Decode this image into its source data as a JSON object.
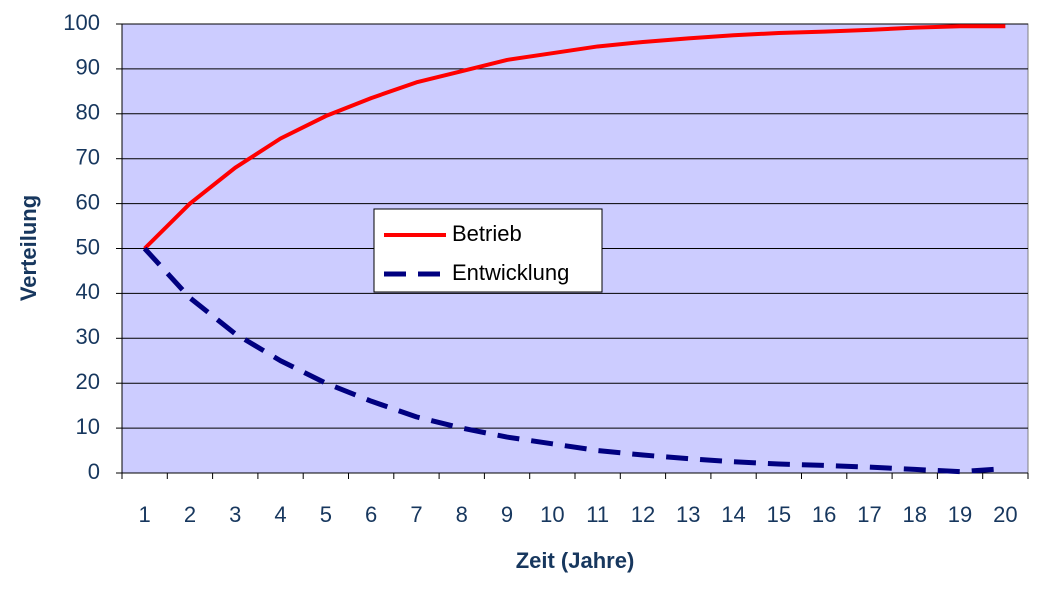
{
  "chart_data": {
    "type": "line",
    "x_label": "Zeit (Jahre)",
    "y_label": "Verteilung",
    "categories": [
      "1",
      "2",
      "3",
      "4",
      "5",
      "6",
      "7",
      "8",
      "9",
      "10",
      "11",
      "12",
      "13",
      "14",
      "15",
      "16",
      "17",
      "18",
      "19",
      "20"
    ],
    "series": [
      {
        "name": "Betrieb",
        "color": "#ff0000",
        "dash": false,
        "values": [
          50,
          60,
          68,
          74.5,
          79.5,
          83.5,
          87,
          89.5,
          92,
          93.5,
          95,
          96,
          96.8,
          97.5,
          98,
          98.3,
          98.7,
          99.2,
          99.5,
          99.5
        ]
      },
      {
        "name": "Entwicklung",
        "color": "#000080",
        "dash": true,
        "values": [
          50,
          39,
          31,
          25,
          20,
          16,
          12.5,
          10,
          8,
          6.5,
          5,
          4,
          3.2,
          2.5,
          2,
          1.7,
          1.3,
          0.8,
          0.3,
          1
        ]
      }
    ],
    "ylim": [
      0,
      100
    ],
    "yticks": [
      0,
      10,
      20,
      30,
      40,
      50,
      60,
      70,
      80,
      90,
      100
    ],
    "grid": true,
    "plot_background": "#ccccff"
  }
}
